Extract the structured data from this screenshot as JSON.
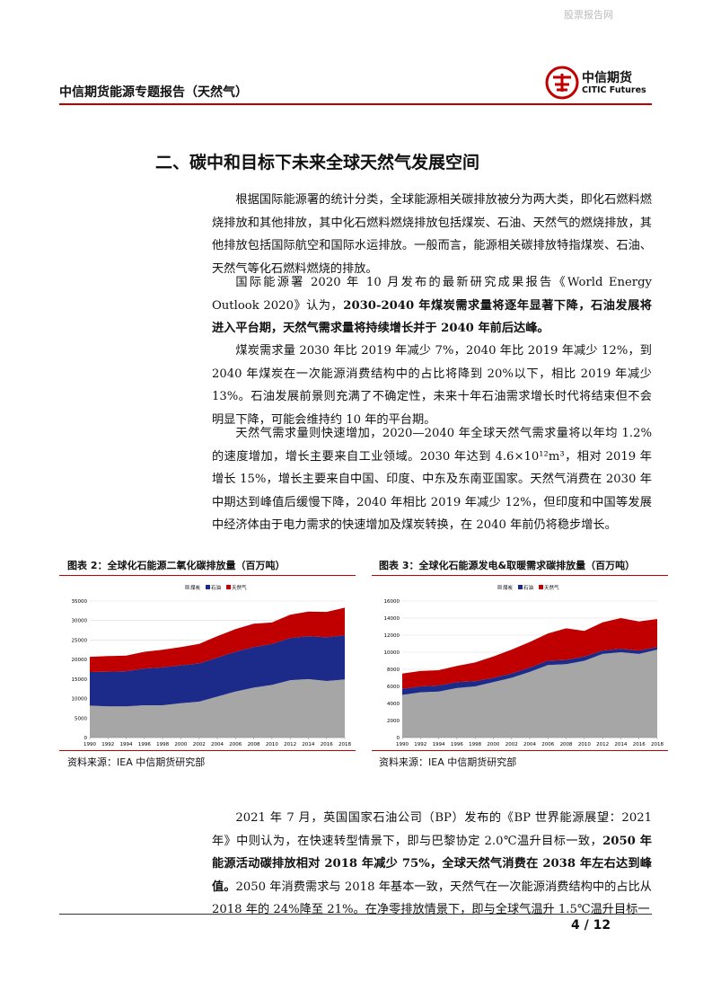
{
  "watermark": "股票报告网",
  "header": {
    "title": "中信期货能源专题报告（天然气）",
    "logo_cn": "中信期货",
    "logo_en": "CITIC Futures"
  },
  "section_title": "二、碳中和目标下未来全球天然气发展空间",
  "paragraphs": [
    {
      "runs": [
        {
          "text": "根据国际能源署的统计分类，全球能源相关碳排放被分为两大类，即化石燃料燃烧排放和其他排放，其中化石燃料燃烧排放包括煤炭、石油、天然气的燃烧排放，其他排放包括国际航空和国际水运排放。一般而言，能源相关碳排放特指煤炭、石油、天然气等化石燃料燃烧的排放。",
          "bold": false
        }
      ]
    },
    {
      "runs": [
        {
          "text": "国际能源署 2020 年 10 月发布的最新研究成果报告《World Energy Outlook 2020》认为，",
          "bold": false
        },
        {
          "text": "2030-2040 年煤炭需求量将逐年显著下降，石油发展将进入平台期，天然气需求量将持续增长并于 2040 年前后达峰。",
          "bold": true
        }
      ]
    },
    {
      "runs": [
        {
          "text": "煤炭需求量 2030 年比 2019 年减少 7%，2040 年比 2019 年减少 12%，到 2040 年煤炭在一次能源消费结构中的占比将降到 20%以下，相比 2019 年减少 13%。石油发展前景则充满了不确定性，未来十年石油需求增长时代将结束但不会明显下降，可能会维持约 10 年的平台期。",
          "bold": false
        }
      ]
    },
    {
      "runs": [
        {
          "text": "天然气需求量则快速增加，2020—2040 年全球天然气需求量将以年均 1.2%的速度增加，增长主要来自工业领域。2030 年达到 4.6×10¹²m³，相对 2019 年增长 15%，增长主要来自中国、印度、中东及东南亚国家。天然气消费在 2030 年中期达到峰值后缓慢下降，2040 年相比 2019 年减少 12%，但印度和中国等发展中经济体由于电力需求的快速增加及煤炭转换，在 2040 年前仍将稳步增长。",
          "bold": false
        }
      ]
    }
  ],
  "paragraphs_after": [
    {
      "runs": [
        {
          "text": "2021 年 7 月，英国国家石油公司（BP）发布的《BP 世界能源展望：2021 年》中则认为，在快速转型情景下，即与巴黎协定 2.0℃温升目标一致，",
          "bold": false
        },
        {
          "text": "2050 年能源活动碳排放相对 2018 年减少 75%，全球天然气消费在 2038 年左右达到峰值。",
          "bold": true
        },
        {
          "text": "2050 年消费需求与 2018 年基本一致，天然气在一次能源消费结构中的占比从 2018 年的 24%降至 21%。在净零排放情景下，即与全球气温升 1.5℃温升目标一",
          "bold": false
        }
      ]
    }
  ],
  "chart_data": [
    {
      "type": "stacked-area",
      "title": "图表 2：全球化石能源二氧化碳排放量（百万吨）",
      "source": "资料来源：IEA 中信期货研究部",
      "x": [
        1990,
        1992,
        1994,
        1996,
        1998,
        2000,
        2002,
        2004,
        2006,
        2008,
        2010,
        2012,
        2014,
        2016,
        2018
      ],
      "xlim": [
        1990,
        2018
      ],
      "xticks": [
        1990,
        1992,
        1994,
        1996,
        1998,
        2000,
        2002,
        2004,
        2006,
        2008,
        2010,
        2012,
        2014,
        2016,
        2018
      ],
      "ylim": [
        0,
        35000
      ],
      "yticks": [
        0,
        5000,
        10000,
        15000,
        20000,
        25000,
        30000,
        35000
      ],
      "grid": true,
      "series": [
        {
          "name": "煤炭",
          "color": "#a6a6a6",
          "values": [
            8200,
            8000,
            8000,
            8300,
            8300,
            8800,
            9200,
            10500,
            11800,
            12800,
            13500,
            14700,
            15000,
            14500,
            14900
          ]
        },
        {
          "name": "石油",
          "color": "#1c2a8a",
          "values": [
            8600,
            8900,
            9000,
            9400,
            9700,
            9700,
            9800,
            10000,
            10200,
            10400,
            10500,
            10800,
            11000,
            11200,
            11300
          ]
        },
        {
          "name": "天然气",
          "color": "#c00000",
          "values": [
            3900,
            4000,
            4000,
            4300,
            4500,
            4700,
            5000,
            5500,
            5800,
            6000,
            5500,
            6000,
            6300,
            6500,
            7100
          ]
        }
      ]
    },
    {
      "type": "stacked-area",
      "title": "图表 3：全球化石能源发电&取暖需求碳排放量（百万吨）",
      "source": "资料来源：IEA 中信期货研究部",
      "x": [
        1990,
        1992,
        1994,
        1996,
        1998,
        2000,
        2002,
        2004,
        2006,
        2008,
        2010,
        2012,
        2014,
        2016,
        2018
      ],
      "xlim": [
        1990,
        2018
      ],
      "xticks": [
        1990,
        1992,
        1994,
        1996,
        1998,
        2000,
        2002,
        2004,
        2006,
        2008,
        2010,
        2012,
        2014,
        2016,
        2018
      ],
      "ylim": [
        0,
        16000
      ],
      "yticks": [
        0,
        2000,
        4000,
        6000,
        8000,
        10000,
        12000,
        14000,
        16000
      ],
      "grid": true,
      "series": [
        {
          "name": "煤炭",
          "color": "#a6a6a6",
          "values": [
            5000,
            5300,
            5400,
            5800,
            6000,
            6500,
            7000,
            7700,
            8500,
            8600,
            9000,
            9800,
            10000,
            9800,
            10300
          ]
        },
        {
          "name": "石油",
          "color": "#1c2a8a",
          "values": [
            700,
            700,
            700,
            700,
            600,
            500,
            500,
            500,
            500,
            500,
            500,
            400,
            400,
            400,
            300
          ]
        },
        {
          "name": "天然气",
          "color": "#c00000",
          "values": [
            1800,
            1800,
            1800,
            1900,
            2200,
            2500,
            2800,
            3000,
            3200,
            3700,
            3000,
            3300,
            3600,
            3400,
            3300
          ]
        }
      ]
    }
  ],
  "footer": {
    "page": "4 / 12"
  }
}
